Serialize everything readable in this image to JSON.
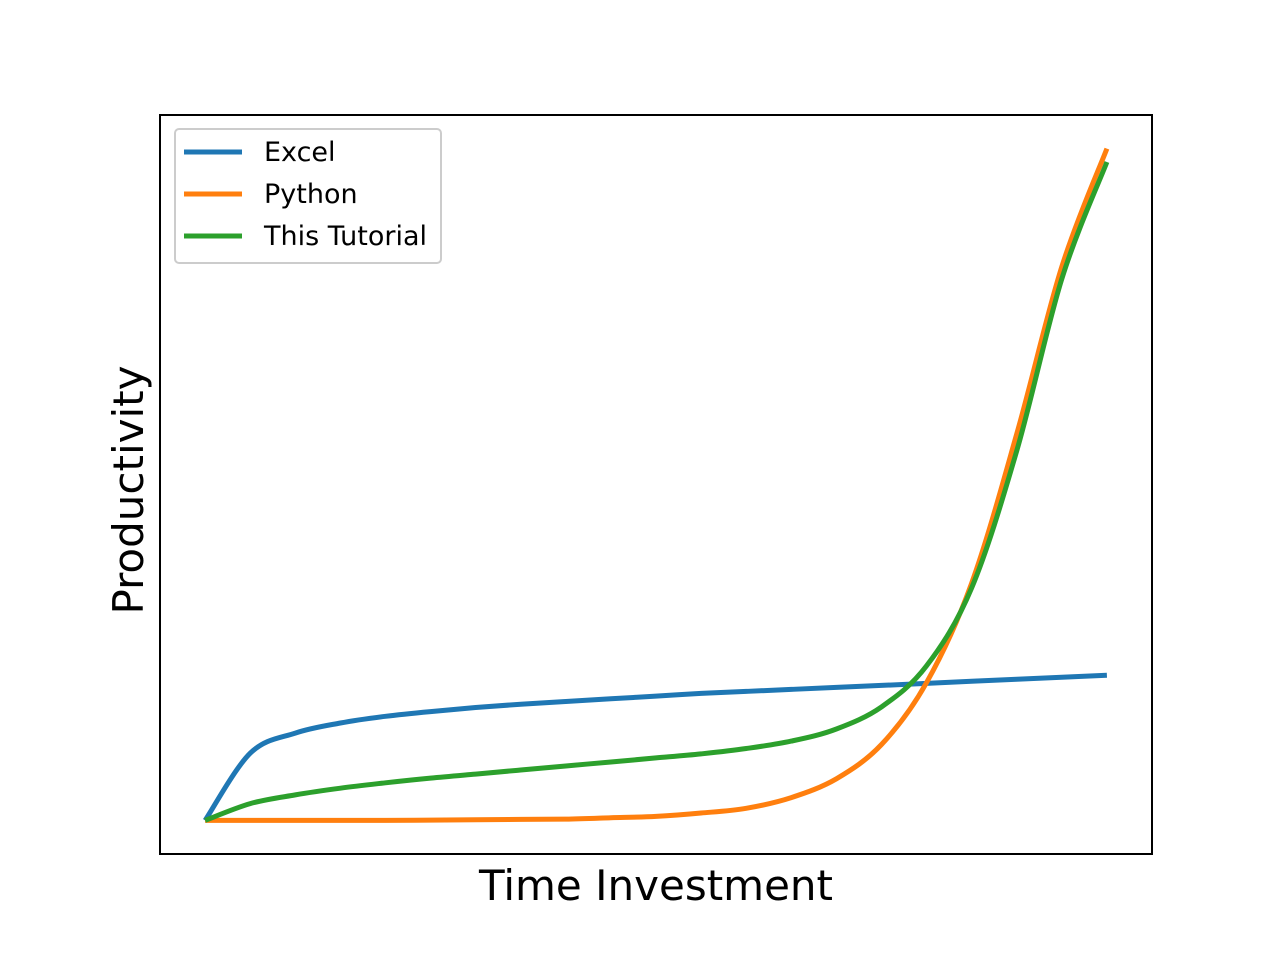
{
  "chart_data": {
    "type": "line",
    "title": "",
    "xlabel": "Time Investment",
    "ylabel": "Productivity",
    "xlim": [
      -0.05,
      1.05
    ],
    "ylim": [
      -0.05,
      1.05
    ],
    "x_ticks_visible": false,
    "y_ticks_visible": false,
    "grid": false,
    "legend_position": "upper left",
    "x": [
      0,
      0.05,
      0.1,
      0.15,
      0.2,
      0.25,
      0.3,
      0.35,
      0.4,
      0.45,
      0.5,
      0.55,
      0.6,
      0.65,
      0.7,
      0.75,
      0.8,
      0.85,
      0.9,
      0.95,
      1.0
    ],
    "series": [
      {
        "name": "Excel",
        "color": "#1f77b4",
        "values": [
          0.0,
          0.1,
          0.13,
          0.145,
          0.155,
          0.162,
          0.168,
          0.173,
          0.177,
          0.181,
          0.185,
          0.189,
          0.192,
          0.195,
          0.198,
          0.201,
          0.204,
          0.207,
          0.21,
          0.213,
          0.216
        ]
      },
      {
        "name": "Python",
        "color": "#ff7f0e",
        "values": [
          0.0,
          0.0,
          0.0,
          0.0,
          0.0,
          0.0005,
          0.001,
          0.0015,
          0.002,
          0.004,
          0.006,
          0.011,
          0.018,
          0.034,
          0.062,
          0.113,
          0.205,
          0.353,
          0.575,
          0.824,
          1.0
        ]
      },
      {
        "name": "This Tutorial",
        "color": "#2ca02c",
        "values": [
          0.0,
          0.025,
          0.038,
          0.048,
          0.056,
          0.063,
          0.069,
          0.075,
          0.081,
          0.087,
          0.093,
          0.099,
          0.107,
          0.118,
          0.136,
          0.169,
          0.23,
          0.346,
          0.55,
          0.806,
          0.98
        ]
      }
    ]
  }
}
